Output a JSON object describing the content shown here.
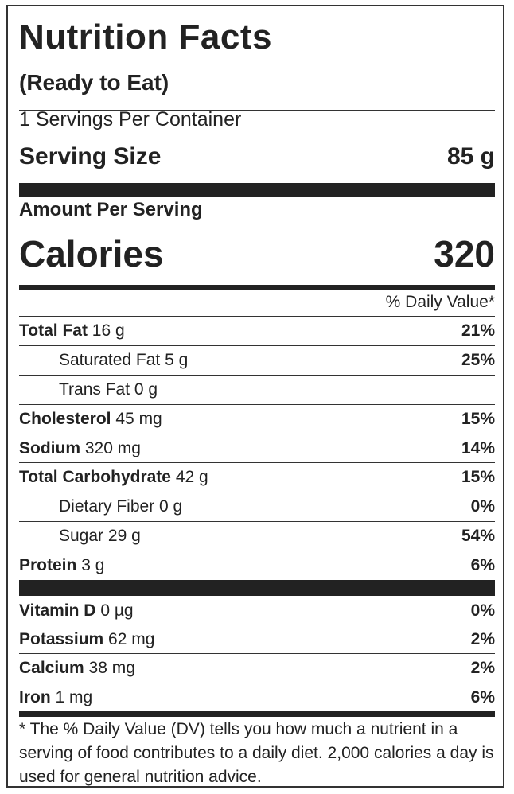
{
  "label": {
    "title": "Nutrition Facts",
    "subtitle": "(Ready to Eat)",
    "servings_per_container": "1 Servings Per Container",
    "serving_size_label": "Serving Size",
    "serving_size_value": "85 g",
    "amount_per_serving": "Amount Per Serving",
    "calories_label": "Calories",
    "calories_value": "320",
    "daily_value_header": "% Daily Value*"
  },
  "nutrients": [
    {
      "name": "Total Fat",
      "amount": "16 g",
      "dv": "21%"
    },
    {
      "name": "Saturated Fat",
      "amount": "5 g",
      "dv": "25%"
    },
    {
      "name": "Trans Fat",
      "amount": "0 g",
      "dv": ""
    },
    {
      "name": "Cholesterol",
      "amount": "45 mg",
      "dv": "15%"
    },
    {
      "name": "Sodium",
      "amount": "320 mg",
      "dv": "14%"
    },
    {
      "name": "Total Carbohydrate",
      "amount": "42 g",
      "dv": "15%"
    },
    {
      "name": "Dietary Fiber",
      "amount": "0 g",
      "dv": "0%"
    },
    {
      "name": "Sugar",
      "amount": "29 g",
      "dv": "54%"
    },
    {
      "name": "Protein",
      "amount": "3 g",
      "dv": "6%"
    }
  ],
  "vitamins": [
    {
      "name": "Vitamin D",
      "amount": "0 µg",
      "dv": "0%"
    },
    {
      "name": "Potassium",
      "amount": "62 mg",
      "dv": "2%"
    },
    {
      "name": "Calcium",
      "amount": "38 mg",
      "dv": "2%"
    },
    {
      "name": "Iron",
      "amount": "1 mg",
      "dv": "6%"
    }
  ],
  "footnote": "* The % Daily Value (DV) tells you how much a nutrient in a serving of food contributes to a daily diet. 2,000 calories a day is used for general nutrition advice."
}
